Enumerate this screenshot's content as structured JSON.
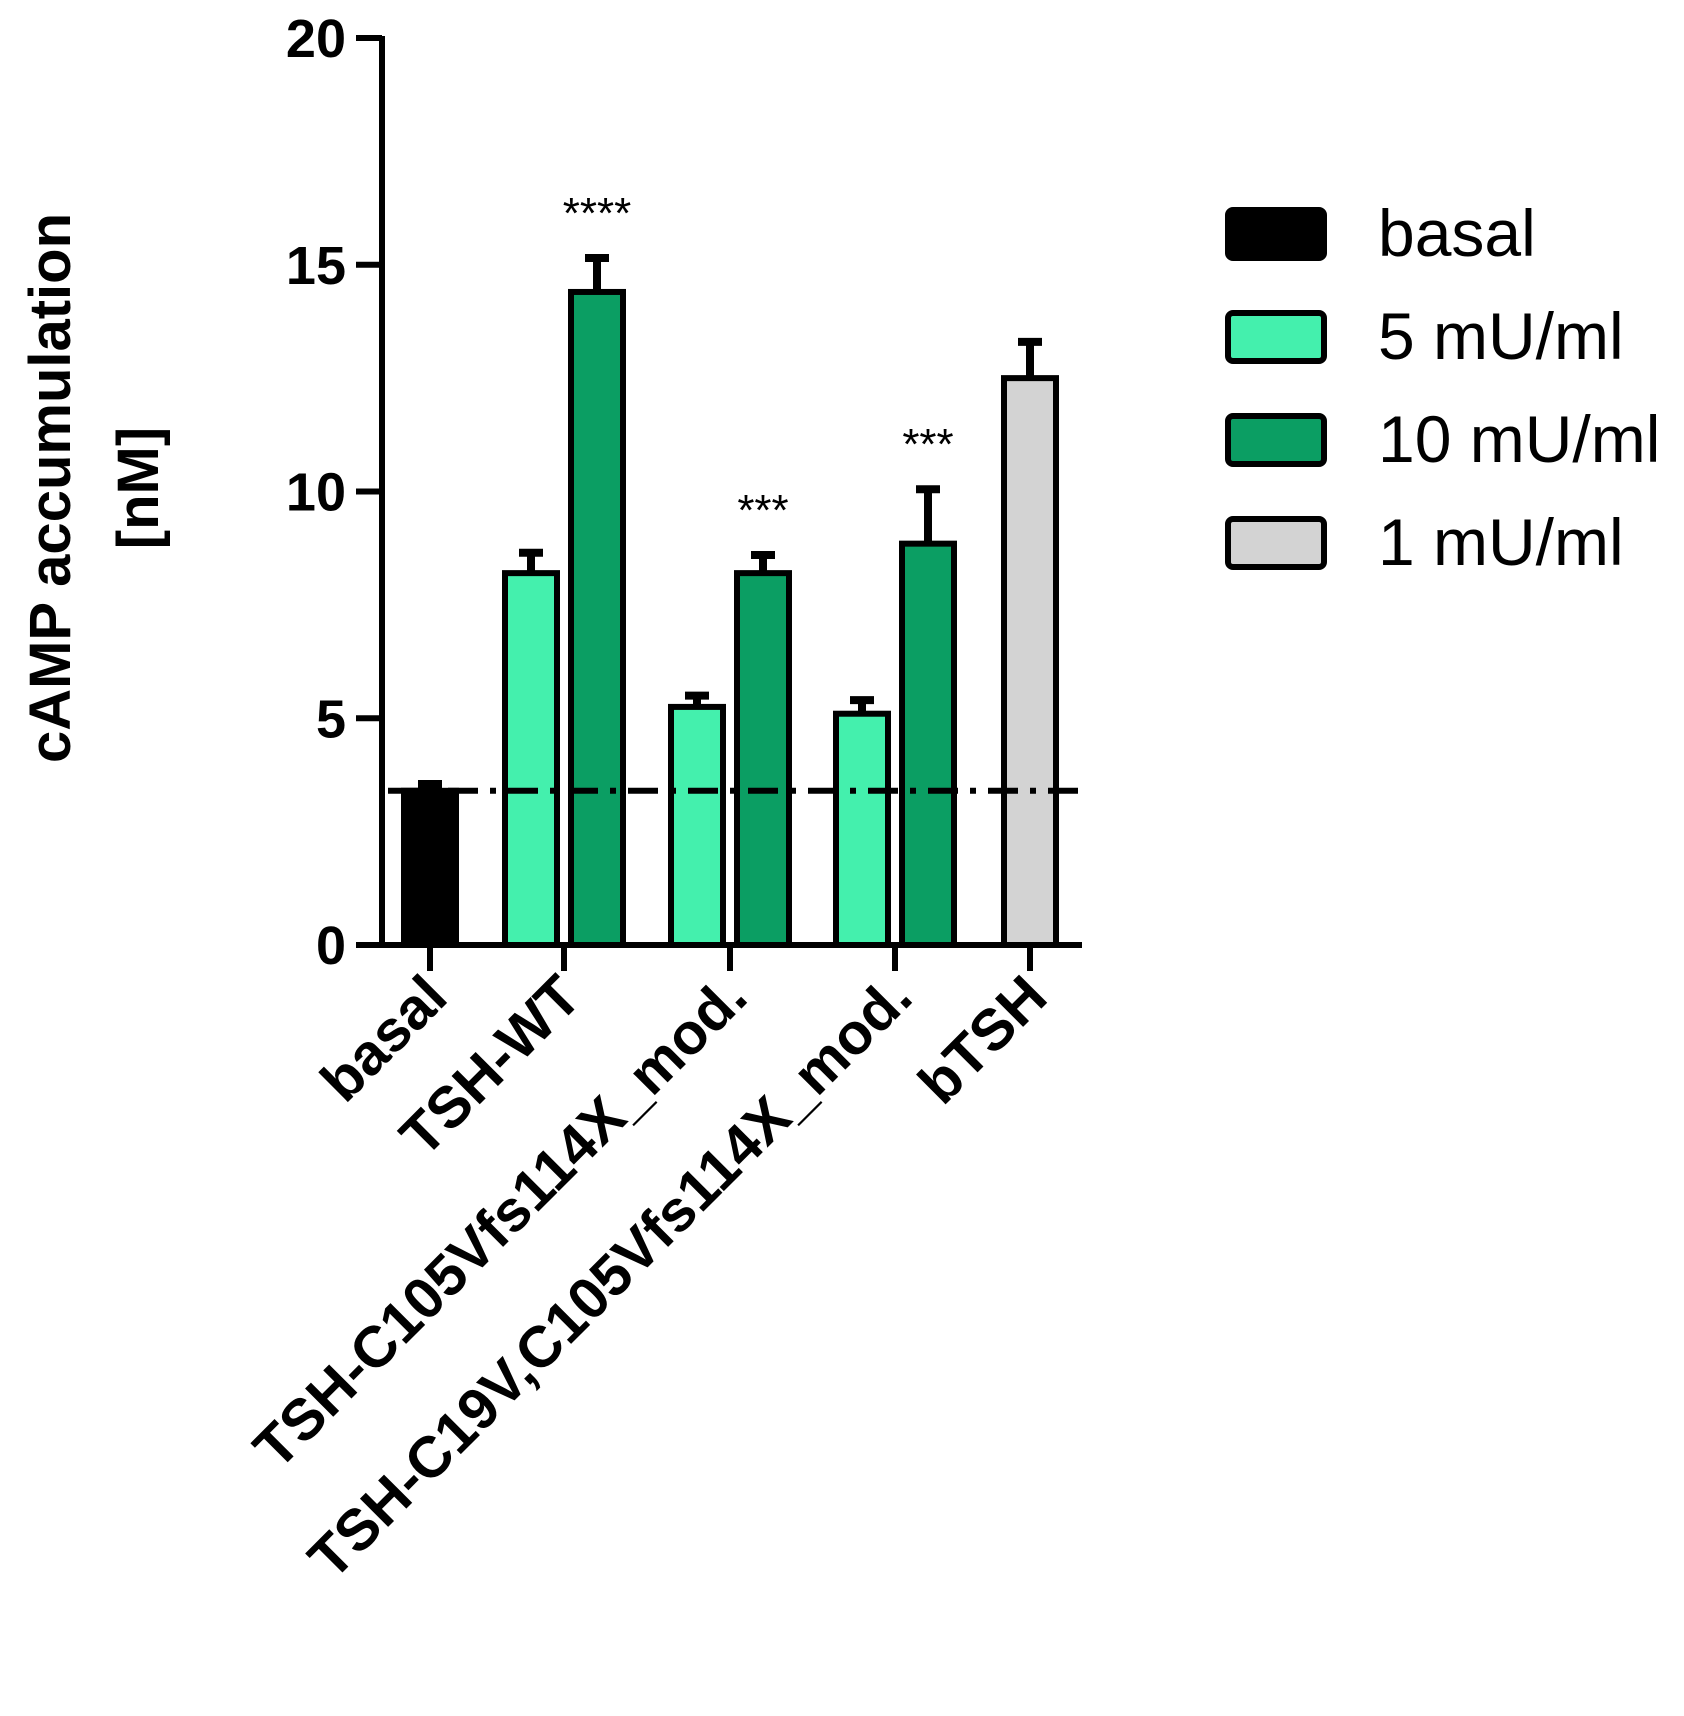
{
  "chart_data": {
    "type": "bar",
    "categories": [
      "basal",
      "TSH-WT",
      "TSH-C105Vfs114X_mod.",
      "TSH-C19V,C105Vfs114X_mod.",
      "bTSH"
    ],
    "series": [
      {
        "name": "basal",
        "color": "#000000",
        "values": [
          3.4,
          null,
          null,
          null,
          null
        ],
        "errors": [
          0.15,
          null,
          null,
          null,
          null
        ]
      },
      {
        "name": "5 mU/ml",
        "color": "#44f0ad",
        "values": [
          null,
          8.2,
          5.25,
          5.1,
          null
        ],
        "errors": [
          null,
          0.45,
          0.25,
          0.3,
          null
        ]
      },
      {
        "name": "10 mU/ml",
        "color": "#0b9e63",
        "values": [
          null,
          14.4,
          8.2,
          8.85,
          null
        ],
        "errors": [
          null,
          0.75,
          0.4,
          1.2,
          null
        ]
      },
      {
        "name": "1 mU/ml",
        "color": "#d3d3d3",
        "values": [
          null,
          null,
          null,
          null,
          12.5
        ],
        "errors": [
          null,
          null,
          null,
          null,
          0.8
        ]
      }
    ],
    "significance": [
      {
        "category": "TSH-WT",
        "series": "10 mU/ml",
        "label": "****"
      },
      {
        "category": "TSH-C105Vfs114X_mod.",
        "series": "10 mU/ml",
        "label": "***"
      },
      {
        "category": "TSH-C19V,C105Vfs114X_mod.",
        "series": "10 mU/ml",
        "label": "***"
      }
    ],
    "baseline": 3.4,
    "ylabel_line1": "cAMP accumulation",
    "ylabel_line2": "[nM]",
    "xlabel": "",
    "ylim": [
      0,
      20
    ],
    "yticks": [
      "0",
      "5",
      "10",
      "15",
      "20"
    ],
    "ytick_values": [
      0,
      5,
      10,
      15,
      20
    ],
    "legend_position": "right",
    "grid": false
  }
}
